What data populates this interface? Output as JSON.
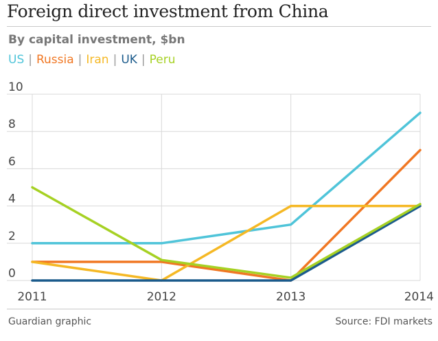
{
  "header": {
    "title": "Foreign direct investment from China",
    "subtitle": "By capital investment, $bn"
  },
  "legend_separator": "|",
  "colors": {
    "US": "#4fc4d9",
    "Russia": "#f07723",
    "Iran": "#f5b824",
    "UK": "#1b5b8c",
    "Peru": "#a6d123",
    "grid": "#d8d8d8"
  },
  "footer": {
    "credit": "Guardian graphic",
    "source": "Source: FDI markets"
  },
  "chart_data": {
    "type": "line",
    "title": "Foreign direct investment from China",
    "subtitle": "By capital investment, $bn",
    "xlabel": "",
    "ylabel": "",
    "x": [
      "2011",
      "2012",
      "2013",
      "2014"
    ],
    "ylim": [
      0,
      10
    ],
    "yticks": [
      "0",
      "2",
      "4",
      "6",
      "8",
      "10"
    ],
    "grid": true,
    "legend_position": "top-left",
    "series": [
      {
        "name": "US",
        "color": "#4fc4d9",
        "values": [
          2.0,
          2.0,
          3.0,
          9.0
        ]
      },
      {
        "name": "Russia",
        "color": "#f07723",
        "values": [
          1.0,
          1.0,
          0.0,
          7.0
        ]
      },
      {
        "name": "Iran",
        "color": "#f5b824",
        "values": [
          1.0,
          0.0,
          4.0,
          4.0
        ]
      },
      {
        "name": "UK",
        "color": "#1b5b8c",
        "values": [
          0.0,
          0.0,
          0.0,
          4.0
        ]
      },
      {
        "name": "Peru",
        "color": "#a6d123",
        "values": [
          5.0,
          1.1,
          0.15,
          4.1
        ]
      }
    ]
  }
}
